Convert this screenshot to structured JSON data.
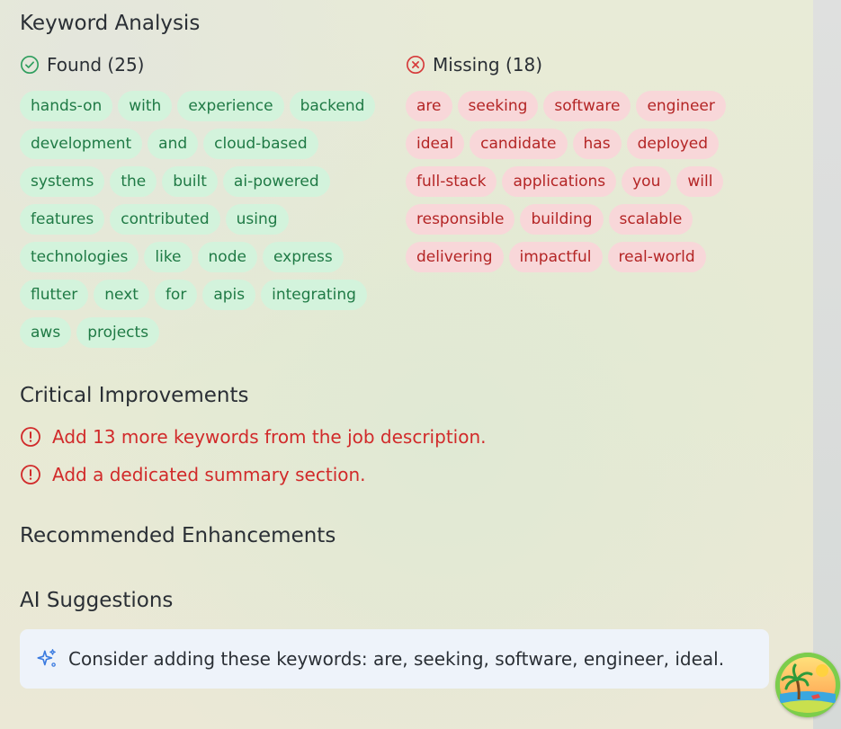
{
  "keyword_analysis": {
    "title": "Keyword Analysis",
    "found": {
      "label": "Found (25)",
      "count": 25,
      "keywords": [
        "hands-on",
        "with",
        "experience",
        "backend",
        "development",
        "and",
        "cloud-based",
        "systems",
        "the",
        "built",
        "ai-powered",
        "features",
        "contributed",
        "using",
        "technologies",
        "like",
        "node",
        "express",
        "flutter",
        "next",
        "for",
        "apis",
        "integrating",
        "aws",
        "projects"
      ]
    },
    "missing": {
      "label": "Missing (18)",
      "count": 18,
      "keywords": [
        "are",
        "seeking",
        "software",
        "engineer",
        "ideal",
        "candidate",
        "has",
        "deployed",
        "full-stack",
        "applications",
        "you",
        "will",
        "responsible",
        "building",
        "scalable",
        "delivering",
        "impactful",
        "real-world"
      ]
    }
  },
  "critical_improvements": {
    "title": "Critical Improvements",
    "items": [
      "Add 13 more keywords from the job description.",
      "Add a dedicated summary section."
    ]
  },
  "recommended_enhancements": {
    "title": "Recommended Enhancements"
  },
  "ai_suggestions": {
    "title": "AI Suggestions",
    "text": "Consider adding these keywords: are, seeking, software, engineer, ideal."
  },
  "colors": {
    "found_bg": "#d3f3dc",
    "found_text": "#1f7a45",
    "missing_bg": "#f8d7d9",
    "missing_text": "#b42525",
    "critical": "#d12a2a"
  }
}
